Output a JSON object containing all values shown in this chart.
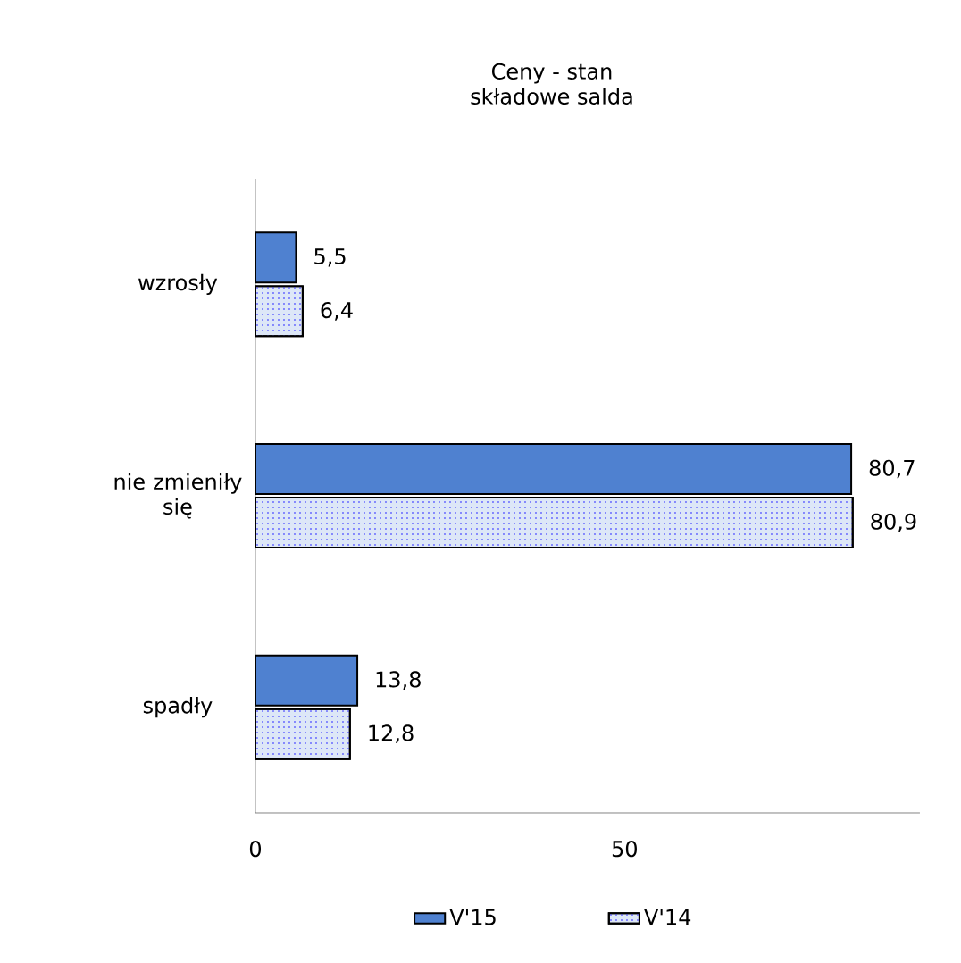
{
  "chart_data": {
    "type": "bar",
    "orientation": "horizontal",
    "title": "Ceny - stan",
    "subtitle": "składowe salda",
    "categories": [
      "wzrosły",
      "nie zmieniły się",
      "spadły"
    ],
    "series": [
      {
        "name": "V'15",
        "color": "#4f81d0",
        "values": [
          5.5,
          80.7,
          13.8
        ],
        "value_labels": [
          "5,5",
          "80,7",
          "13,8"
        ]
      },
      {
        "name": "V'14",
        "color": "#dde7f7",
        "values": [
          6.4,
          80.9,
          12.8
        ],
        "value_labels": [
          "6,4",
          "80,9",
          "12,8"
        ]
      }
    ],
    "xlim": [
      0,
      90
    ],
    "xticks": [
      0,
      50
    ],
    "grid": false,
    "legend": "bottom"
  }
}
